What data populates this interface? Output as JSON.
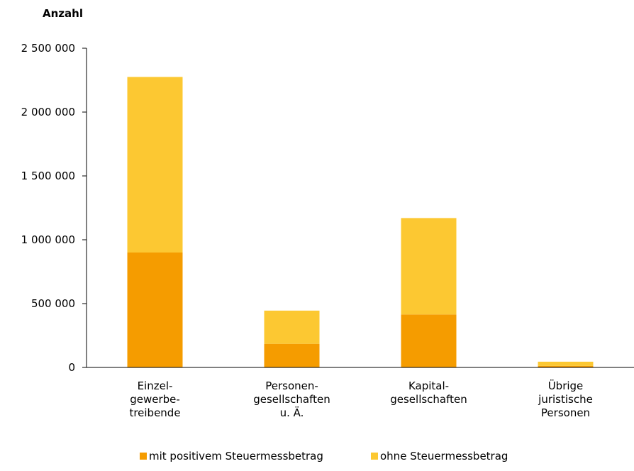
{
  "chart_data": {
    "type": "bar",
    "stacked": true,
    "y_unit_label": "Anzahl",
    "categories": [
      [
        "Einzel-",
        "gewerbe-",
        "treibende"
      ],
      [
        "Personen-",
        "gesellschaften",
        "u. Ä."
      ],
      [
        "Kapital-",
        "gesellschaften"
      ],
      [
        "Übrige",
        "juristische",
        "Personen"
      ]
    ],
    "series": [
      {
        "name": "mit positivem Steuermessbetrag",
        "color": "#f59c00",
        "values": [
          900000,
          185000,
          415000,
          12000
        ]
      },
      {
        "name": "ohne Steuermessbetrag",
        "color": "#fcc832",
        "values": [
          1375000,
          260000,
          755000,
          33000
        ]
      }
    ],
    "ylim": [
      0,
      2500000
    ],
    "y_ticks": [
      0,
      500000,
      1000000,
      1500000,
      2000000,
      2500000
    ],
    "y_tick_labels": [
      "0",
      "500 000",
      "1 000 000",
      "1 500 000",
      "2 000 000",
      "2 500 000"
    ],
    "grid": false,
    "legend_position": "bottom"
  }
}
